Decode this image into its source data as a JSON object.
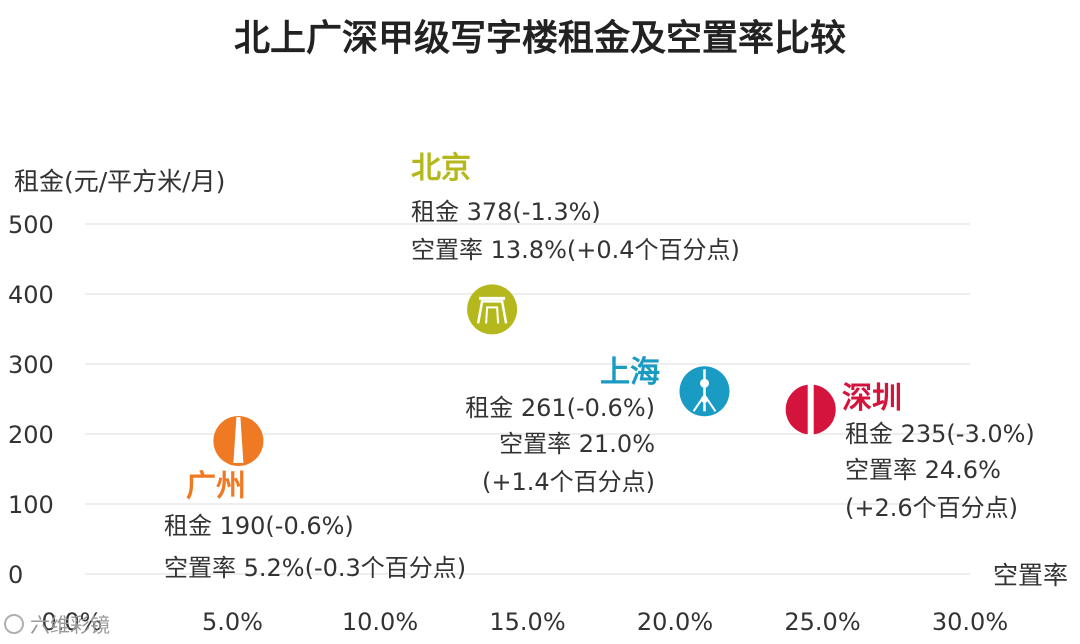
{
  "chart_data": {
    "type": "scatter",
    "title": "北上广深甲级写字楼租金及空置率比较",
    "xlabel": "空置率",
    "ylabel": "租金(元/平方米/月)",
    "xlim": [
      0,
      30
    ],
    "ylim": [
      0,
      500
    ],
    "x_ticks": [
      {
        "value": 0,
        "label": "0.0%"
      },
      {
        "value": 5,
        "label": "5.0%"
      },
      {
        "value": 10,
        "label": "10.0%"
      },
      {
        "value": 15,
        "label": "15.0%"
      },
      {
        "value": 20,
        "label": "20.0%"
      },
      {
        "value": 25,
        "label": "25.0%"
      },
      {
        "value": 30,
        "label": "30.0%"
      }
    ],
    "y_ticks": [
      {
        "value": 0,
        "label": "0"
      },
      {
        "value": 100,
        "label": "100"
      },
      {
        "value": 200,
        "label": "200"
      },
      {
        "value": 300,
        "label": "300"
      },
      {
        "value": 400,
        "label": "400"
      },
      {
        "value": 500,
        "label": "500"
      }
    ],
    "grid": true,
    "points": [
      {
        "city": "北京",
        "x": 13.8,
        "y": 378,
        "color": "#b5b81c",
        "icon": "beijing-gate-icon",
        "lines": [
          "租金 378(-1.3%)",
          "空置率 13.8%(+0.4个百分点)"
        ]
      },
      {
        "city": "上海",
        "x": 21.0,
        "y": 261,
        "color": "#1a9bc4",
        "icon": "shanghai-tower-icon",
        "lines": [
          "租金 261(-0.6%)",
          "空置率 21.0%",
          "(+1.4个百分点)"
        ]
      },
      {
        "city": "深圳",
        "x": 24.6,
        "y": 235,
        "color": "#d4143c",
        "icon": "shenzhen-tower-icon",
        "lines": [
          "租金 235(-3.0%)",
          "空置率 24.6%",
          "(+2.6个百分点)"
        ]
      },
      {
        "city": "广州",
        "x": 5.2,
        "y": 190,
        "color": "#f07a24",
        "icon": "guangzhou-tower-icon",
        "lines": [
          "租金 190(-0.6%)",
          "空置率 5.2%(-0.3个百分点)"
        ]
      }
    ]
  },
  "watermark": "六维彩镜"
}
